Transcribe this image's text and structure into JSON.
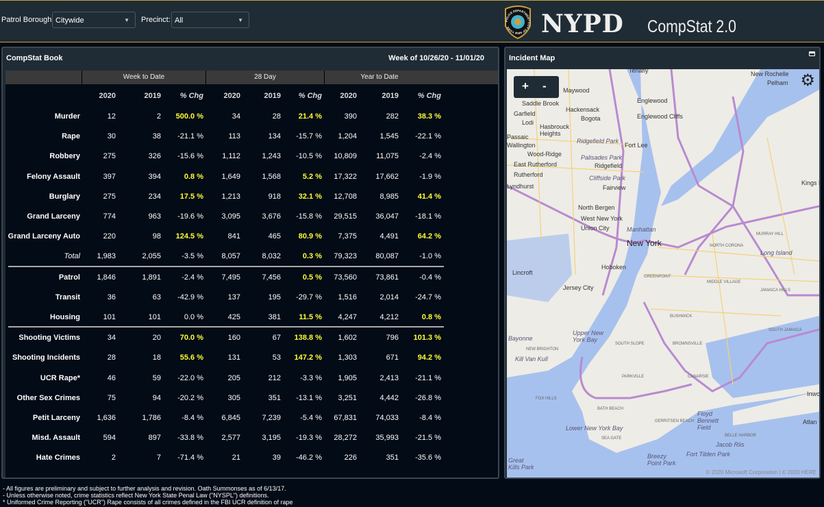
{
  "filters": {
    "borough_label": "Patrol Borough:",
    "borough_value": "Citywide",
    "precinct_label": "Precinct:",
    "precinct_value": "All"
  },
  "brand": {
    "logo": "NYPD",
    "subtitle": "CompStat 2.0",
    "badge_text": "POLICE DEPARTMENT CITY OF NEW YORK"
  },
  "book": {
    "title": "CompStat Book",
    "week": "Week of 10/26/20 - 11/01/20",
    "groups": [
      "Week to Date",
      "28 Day",
      "Year to Date"
    ],
    "columns": [
      "2020",
      "2019",
      "% Chg",
      "2020",
      "2019",
      "% Chg",
      "2020",
      "2019",
      "% Chg"
    ],
    "rows": [
      [
        "Murder",
        "12",
        "2",
        "500.0 %",
        "34",
        "28",
        "21.4 %",
        "390",
        "282",
        "38.3 %"
      ],
      [
        "Rape",
        "30",
        "38",
        "-21.1 %",
        "113",
        "134",
        "-15.7 %",
        "1,204",
        "1,545",
        "-22.1 %"
      ],
      [
        "Robbery",
        "275",
        "326",
        "-15.6 %",
        "1,112",
        "1,243",
        "-10.5 %",
        "10,809",
        "11,075",
        "-2.4 %"
      ],
      [
        "Felony Assault",
        "397",
        "394",
        "0.8 %",
        "1,649",
        "1,568",
        "5.2 %",
        "17,322",
        "17,662",
        "-1.9 %"
      ],
      [
        "Burglary",
        "275",
        "234",
        "17.5 %",
        "1,213",
        "918",
        "32.1 %",
        "12,708",
        "8,985",
        "41.4 %"
      ],
      [
        "Grand Larceny",
        "774",
        "963",
        "-19.6 %",
        "3,095",
        "3,676",
        "-15.8 %",
        "29,515",
        "36,047",
        "-18.1 %"
      ],
      [
        "Grand Larceny Auto",
        "220",
        "98",
        "124.5 %",
        "841",
        "465",
        "80.9 %",
        "7,375",
        "4,491",
        "64.2 %"
      ],
      [
        "Total",
        "1,983",
        "2,055",
        "-3.5 %",
        "8,057",
        "8,032",
        "0.3 %",
        "79,323",
        "80,087",
        "-1.0 %"
      ],
      [
        "Patrol",
        "1,846",
        "1,891",
        "-2.4 %",
        "7,495",
        "7,456",
        "0.5 %",
        "73,560",
        "73,861",
        "-0.4 %"
      ],
      [
        "Transit",
        "36",
        "63",
        "-42.9 %",
        "137",
        "195",
        "-29.7 %",
        "1,516",
        "2,014",
        "-24.7 %"
      ],
      [
        "Housing",
        "101",
        "101",
        "0.0 %",
        "425",
        "381",
        "11.5 %",
        "4,247",
        "4,212",
        "0.8 %"
      ],
      [
        "Shooting Victims",
        "34",
        "20",
        "70.0 %",
        "160",
        "67",
        "138.8 %",
        "1,602",
        "796",
        "101.3 %"
      ],
      [
        "Shooting Incidents",
        "28",
        "18",
        "55.6 %",
        "131",
        "53",
        "147.2 %",
        "1,303",
        "671",
        "94.2 %"
      ],
      [
        "UCR Rape*",
        "46",
        "59",
        "-22.0 %",
        "205",
        "212",
        "-3.3 %",
        "1,905",
        "2,413",
        "-21.1 %"
      ],
      [
        "Other Sex Crimes",
        "75",
        "94",
        "-20.2 %",
        "305",
        "351",
        "-13.1 %",
        "3,251",
        "4,442",
        "-26.8 %"
      ],
      [
        "Petit Larceny",
        "1,636",
        "1,786",
        "-8.4 %",
        "6,845",
        "7,239",
        "-5.4 %",
        "67,831",
        "74,033",
        "-8.4 %"
      ],
      [
        "Misd. Assault",
        "594",
        "897",
        "-33.8 %",
        "2,577",
        "3,195",
        "-19.3 %",
        "28,272",
        "35,993",
        "-21.5 %"
      ],
      [
        "Hate Crimes",
        "2",
        "7",
        "-71.4 %",
        "21",
        "39",
        "-46.2 %",
        "226",
        "351",
        "-35.6 %"
      ]
    ]
  },
  "map": {
    "title": "Incident Map",
    "zoom_in": "+",
    "zoom_out": "-",
    "copyright": "© 2020 Microsoft Corporation | © 2020 HERE",
    "labels": [
      "Tenafly",
      "New Rochelle",
      "Pelham",
      "Maywood",
      "Saddle Brook",
      "Hackensack",
      "Bogota",
      "Englewood",
      "Englewood Cliffs",
      "Garfield",
      "Lodi",
      "Hasbrouck Heights",
      "Passaic",
      "Wallington",
      "Ridgefield Park",
      "Fort Lee",
      "Wood-Ridge",
      "East Rutherford",
      "Palisades Park",
      "Ridgefield",
      "Rutherford",
      "Lyndhurst",
      "Cliffside Park",
      "Fairview",
      "Kings Po",
      "North Bergen",
      "West New York",
      "Union City",
      "Manhattan",
      "New York",
      "Hoboken",
      "Lincroft",
      "Jersey City",
      "Long Island",
      "Bayonne",
      "Upper New York Bay",
      "Kill Van Kull",
      "Lower New York Bay",
      "Floyd Bennett Field",
      "Jacob Riis",
      "Fort Tilden Park",
      "Breezy Point Park",
      "Great Kills Park",
      "Atlan",
      "Inwo",
      "MURRAY HILL",
      "NORTH CORONA",
      "GREENPOINT",
      "MIDDLE VILLAGE",
      "JAMAICA HILLS",
      "BUSHWICK",
      "SOUTH JAMAICA",
      "SOUTH SLOPE",
      "BROWNSVILLE",
      "NEW BRIGHTON",
      "PARKVILLE",
      "CANARSIE",
      "FOX HILLS",
      "BATH BEACH",
      "GERRITSEN BEACH",
      "SEA GATE",
      "BELLE HARBOR"
    ]
  },
  "footer": [
    "- All figures are preliminary and subject to further analysis and revision. Oath Summonses as of 6/13/17.",
    "- Unless otherwise noted, crime statistics reflect New York State Penal Law (\"NYSPL\") definitions.",
    "* Uniformed Crime Reporting (\"UCR\") Rape consists of all crimes defined in the FBI UCR definition of rape"
  ],
  "colors": {
    "positive": "#ffff33",
    "accent": "#c9a13b"
  }
}
